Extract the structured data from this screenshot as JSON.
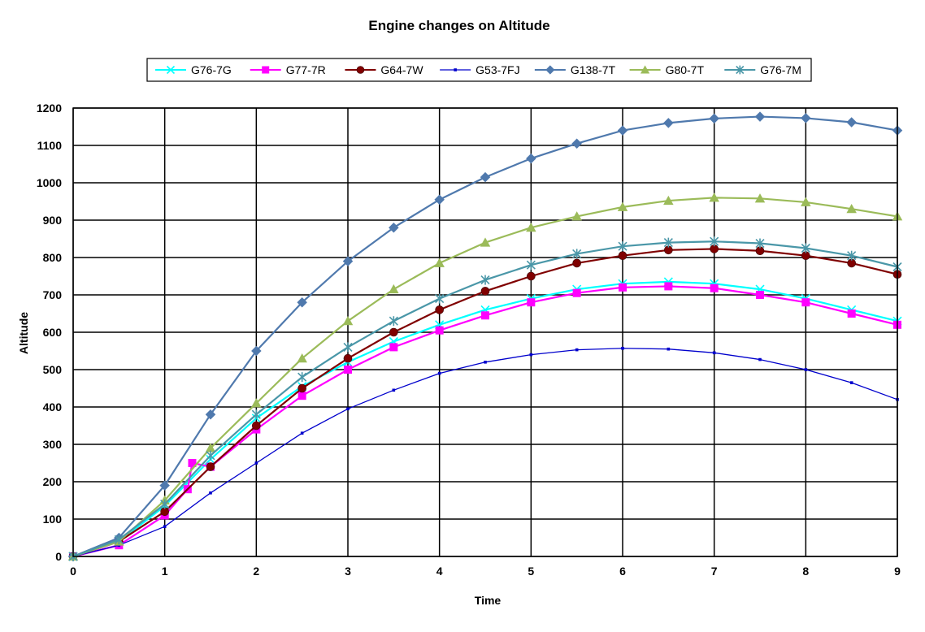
{
  "chart_data": {
    "type": "line",
    "title": "Engine changes on Altitude",
    "xlabel": "Time",
    "ylabel": "Altitude",
    "xlim": [
      0,
      9
    ],
    "ylim": [
      0,
      1200
    ],
    "xticks": [
      "0",
      "1",
      "2",
      "3",
      "4",
      "5",
      "6",
      "7",
      "8",
      "9"
    ],
    "yticks": [
      "0",
      "100",
      "200",
      "300",
      "400",
      "500",
      "600",
      "700",
      "800",
      "900",
      "1000",
      "1100",
      "1200"
    ],
    "grid": true,
    "legend_position": "top",
    "series": [
      {
        "name": "G76-7G",
        "color": "#00FFFF",
        "marker": "x",
        "x": [
          0,
          0.5,
          1,
          1.5,
          2,
          2.5,
          3,
          3.5,
          4,
          4.5,
          5,
          5.5,
          6,
          6.5,
          7,
          7.5,
          8,
          8.5,
          9
        ],
        "y": [
          0,
          40,
          135,
          260,
          370,
          455,
          520,
          575,
          620,
          660,
          690,
          715,
          730,
          735,
          730,
          715,
          690,
          660,
          630
        ]
      },
      {
        "name": "G77-7R",
        "color": "#FF00FF",
        "marker": "square",
        "x": [
          0,
          0.5,
          1,
          1.25,
          1.3,
          1.5,
          2,
          2.5,
          3,
          3.5,
          4,
          4.5,
          5,
          5.5,
          6,
          6.5,
          7,
          7.5,
          8,
          8.5,
          9
        ],
        "y": [
          0,
          30,
          110,
          180,
          250,
          240,
          340,
          430,
          500,
          560,
          605,
          645,
          680,
          705,
          720,
          723,
          718,
          700,
          680,
          650,
          620
        ]
      },
      {
        "name": "G64-7W",
        "color": "#800000",
        "marker": "circle",
        "x": [
          0,
          0.5,
          1,
          1.5,
          2,
          2.5,
          3,
          3.5,
          4,
          4.5,
          5,
          5.5,
          6,
          6.5,
          7,
          7.5,
          8,
          8.5,
          9
        ],
        "y": [
          0,
          40,
          120,
          240,
          350,
          450,
          530,
          600,
          660,
          710,
          750,
          785,
          805,
          820,
          823,
          818,
          805,
          785,
          755
        ]
      },
      {
        "name": "G53-7FJ",
        "color": "#0000CC",
        "marker": "dot",
        "x": [
          0,
          0.5,
          1,
          1.5,
          2,
          2.5,
          3,
          3.5,
          4,
          4.5,
          5,
          5.5,
          6,
          6.5,
          7,
          7.5,
          8,
          8.5,
          9
        ],
        "y": [
          0,
          30,
          80,
          170,
          250,
          330,
          395,
          445,
          490,
          520,
          540,
          553,
          557,
          555,
          545,
          527,
          500,
          465,
          420
        ]
      },
      {
        "name": "G138-7T",
        "color": "#4F79AD",
        "marker": "diamond",
        "x": [
          0,
          0.5,
          1,
          1.5,
          2,
          2.5,
          3,
          3.5,
          4,
          4.5,
          5,
          5.5,
          6,
          6.5,
          7,
          7.5,
          8,
          8.5,
          9
        ],
        "y": [
          0,
          50,
          190,
          380,
          550,
          680,
          790,
          880,
          955,
          1015,
          1065,
          1105,
          1140,
          1160,
          1172,
          1177,
          1173,
          1162,
          1140
        ]
      },
      {
        "name": "G80-7T",
        "color": "#9BBB59",
        "marker": "triangle",
        "x": [
          0,
          0.5,
          1,
          1.5,
          2,
          2.5,
          3,
          3.5,
          4,
          4.5,
          5,
          5.5,
          6,
          6.5,
          7,
          7.5,
          8,
          8.5,
          9
        ],
        "y": [
          0,
          40,
          150,
          290,
          410,
          530,
          630,
          715,
          785,
          840,
          880,
          910,
          935,
          952,
          960,
          958,
          948,
          930,
          910
        ]
      },
      {
        "name": "G76-7M",
        "color": "#4A97A8",
        "marker": "star",
        "x": [
          0,
          0.5,
          1,
          1.5,
          2,
          2.5,
          3,
          3.5,
          4,
          4.5,
          5,
          5.5,
          6,
          6.5,
          7,
          7.5,
          8,
          8.5,
          9
        ],
        "y": [
          0,
          45,
          140,
          270,
          380,
          480,
          560,
          630,
          690,
          740,
          780,
          810,
          830,
          840,
          843,
          838,
          825,
          805,
          775
        ]
      }
    ]
  }
}
